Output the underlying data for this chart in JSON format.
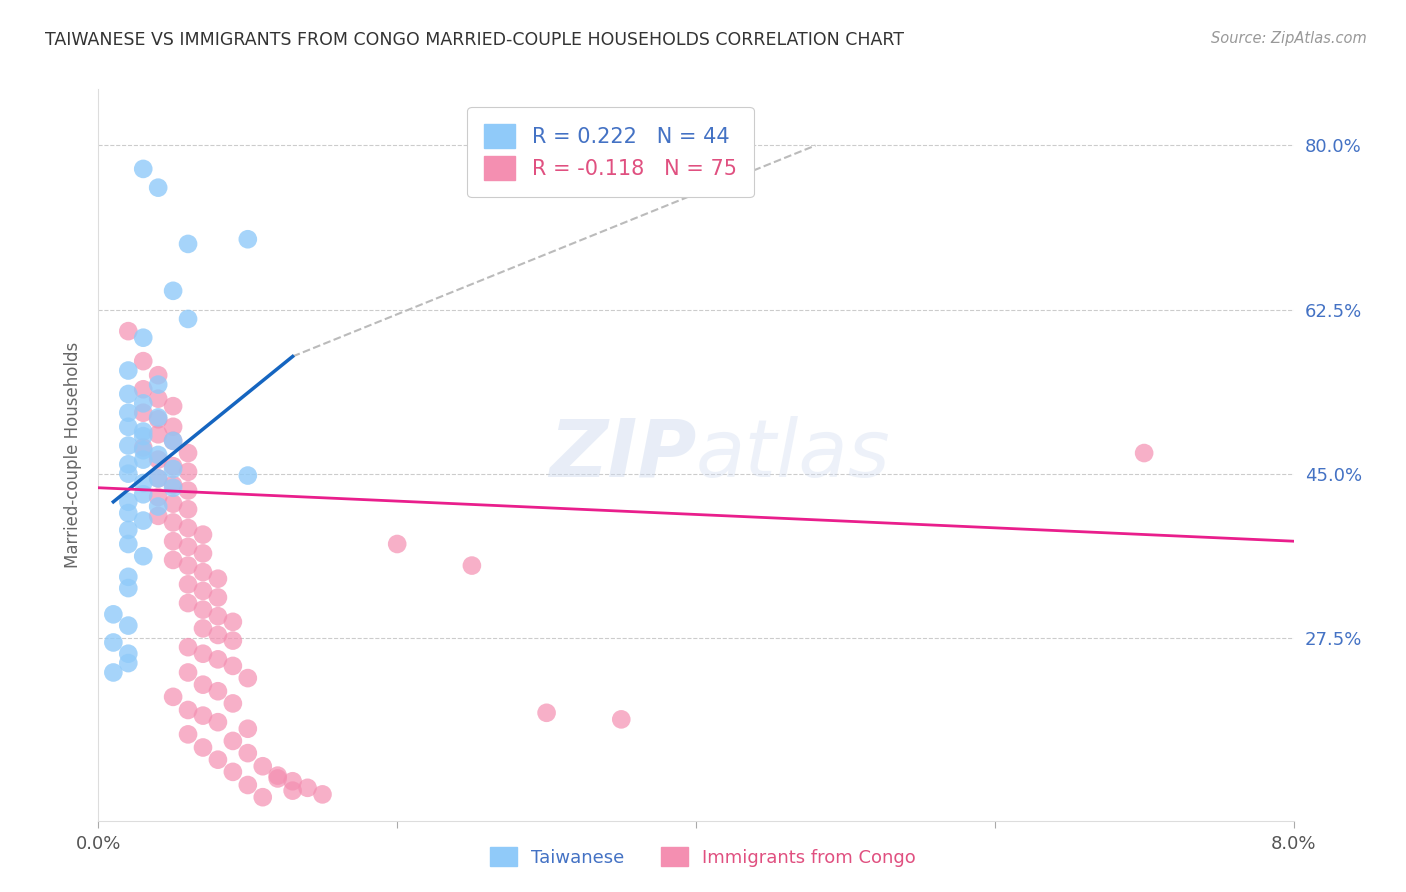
{
  "title": "TAIWANESE VS IMMIGRANTS FROM CONGO MARRIED-COUPLE HOUSEHOLDS CORRELATION CHART",
  "source": "Source: ZipAtlas.com",
  "ylabel": "Married-couple Households",
  "ytick_values": [
    0.275,
    0.45,
    0.625,
    0.8
  ],
  "ytick_labels": [
    "27.5%",
    "45.0%",
    "62.5%",
    "80.0%"
  ],
  "xmin": 0.0,
  "xmax": 0.08,
  "ymin": 0.08,
  "ymax": 0.86,
  "blue_line_color": "#1565c0",
  "pink_line_color": "#e91e8c",
  "dashed_line_color": "#bbbbbb",
  "scatter_blue_color": "#90caf9",
  "scatter_pink_color": "#f48fb1",
  "blue_scatter": [
    [
      0.003,
      0.775
    ],
    [
      0.004,
      0.755
    ],
    [
      0.006,
      0.695
    ],
    [
      0.01,
      0.7
    ],
    [
      0.005,
      0.645
    ],
    [
      0.006,
      0.615
    ],
    [
      0.003,
      0.595
    ],
    [
      0.002,
      0.56
    ],
    [
      0.004,
      0.545
    ],
    [
      0.002,
      0.535
    ],
    [
      0.003,
      0.525
    ],
    [
      0.002,
      0.515
    ],
    [
      0.004,
      0.51
    ],
    [
      0.002,
      0.5
    ],
    [
      0.003,
      0.495
    ],
    [
      0.003,
      0.49
    ],
    [
      0.005,
      0.485
    ],
    [
      0.002,
      0.48
    ],
    [
      0.003,
      0.475
    ],
    [
      0.004,
      0.47
    ],
    [
      0.003,
      0.465
    ],
    [
      0.002,
      0.46
    ],
    [
      0.005,
      0.455
    ],
    [
      0.002,
      0.45
    ],
    [
      0.004,
      0.445
    ],
    [
      0.003,
      0.44
    ],
    [
      0.005,
      0.435
    ],
    [
      0.003,
      0.428
    ],
    [
      0.002,
      0.42
    ],
    [
      0.004,
      0.415
    ],
    [
      0.002,
      0.408
    ],
    [
      0.003,
      0.4
    ],
    [
      0.002,
      0.39
    ],
    [
      0.002,
      0.375
    ],
    [
      0.003,
      0.362
    ],
    [
      0.002,
      0.34
    ],
    [
      0.002,
      0.328
    ],
    [
      0.001,
      0.3
    ],
    [
      0.002,
      0.288
    ],
    [
      0.001,
      0.27
    ],
    [
      0.002,
      0.258
    ],
    [
      0.002,
      0.248
    ],
    [
      0.001,
      0.238
    ],
    [
      0.01,
      0.448
    ]
  ],
  "pink_scatter": [
    [
      0.002,
      0.602
    ],
    [
      0.003,
      0.57
    ],
    [
      0.004,
      0.555
    ],
    [
      0.003,
      0.54
    ],
    [
      0.004,
      0.53
    ],
    [
      0.005,
      0.522
    ],
    [
      0.003,
      0.515
    ],
    [
      0.004,
      0.508
    ],
    [
      0.005,
      0.5
    ],
    [
      0.004,
      0.492
    ],
    [
      0.005,
      0.485
    ],
    [
      0.003,
      0.478
    ],
    [
      0.006,
      0.472
    ],
    [
      0.004,
      0.465
    ],
    [
      0.005,
      0.458
    ],
    [
      0.006,
      0.452
    ],
    [
      0.004,
      0.445
    ],
    [
      0.005,
      0.438
    ],
    [
      0.006,
      0.432
    ],
    [
      0.004,
      0.425
    ],
    [
      0.005,
      0.418
    ],
    [
      0.006,
      0.412
    ],
    [
      0.004,
      0.405
    ],
    [
      0.005,
      0.398
    ],
    [
      0.006,
      0.392
    ],
    [
      0.007,
      0.385
    ],
    [
      0.005,
      0.378
    ],
    [
      0.006,
      0.372
    ],
    [
      0.007,
      0.365
    ],
    [
      0.005,
      0.358
    ],
    [
      0.006,
      0.352
    ],
    [
      0.007,
      0.345
    ],
    [
      0.008,
      0.338
    ],
    [
      0.006,
      0.332
    ],
    [
      0.007,
      0.325
    ],
    [
      0.008,
      0.318
    ],
    [
      0.006,
      0.312
    ],
    [
      0.007,
      0.305
    ],
    [
      0.008,
      0.298
    ],
    [
      0.009,
      0.292
    ],
    [
      0.007,
      0.285
    ],
    [
      0.008,
      0.278
    ],
    [
      0.009,
      0.272
    ],
    [
      0.006,
      0.265
    ],
    [
      0.007,
      0.258
    ],
    [
      0.008,
      0.252
    ],
    [
      0.009,
      0.245
    ],
    [
      0.006,
      0.238
    ],
    [
      0.01,
      0.232
    ],
    [
      0.007,
      0.225
    ],
    [
      0.008,
      0.218
    ],
    [
      0.005,
      0.212
    ],
    [
      0.009,
      0.205
    ],
    [
      0.006,
      0.198
    ],
    [
      0.007,
      0.192
    ],
    [
      0.008,
      0.185
    ],
    [
      0.01,
      0.178
    ],
    [
      0.006,
      0.172
    ],
    [
      0.009,
      0.165
    ],
    [
      0.007,
      0.158
    ],
    [
      0.01,
      0.152
    ],
    [
      0.008,
      0.145
    ],
    [
      0.011,
      0.138
    ],
    [
      0.009,
      0.132
    ],
    [
      0.012,
      0.125
    ],
    [
      0.01,
      0.118
    ],
    [
      0.013,
      0.112
    ],
    [
      0.011,
      0.105
    ],
    [
      0.012,
      0.128
    ],
    [
      0.013,
      0.122
    ],
    [
      0.014,
      0.115
    ],
    [
      0.015,
      0.108
    ],
    [
      0.02,
      0.375
    ],
    [
      0.025,
      0.352
    ],
    [
      0.07,
      0.472
    ],
    [
      0.03,
      0.195
    ],
    [
      0.035,
      0.188
    ]
  ],
  "blue_line": {
    "x0": 0.001,
    "y0": 0.42,
    "x1": 0.013,
    "y1": 0.575
  },
  "dashed_line": {
    "x0": 0.013,
    "y0": 0.575,
    "x1": 0.048,
    "y1": 0.8
  },
  "pink_line": {
    "x0": 0.0,
    "y0": 0.435,
    "x1": 0.08,
    "y1": 0.378
  }
}
